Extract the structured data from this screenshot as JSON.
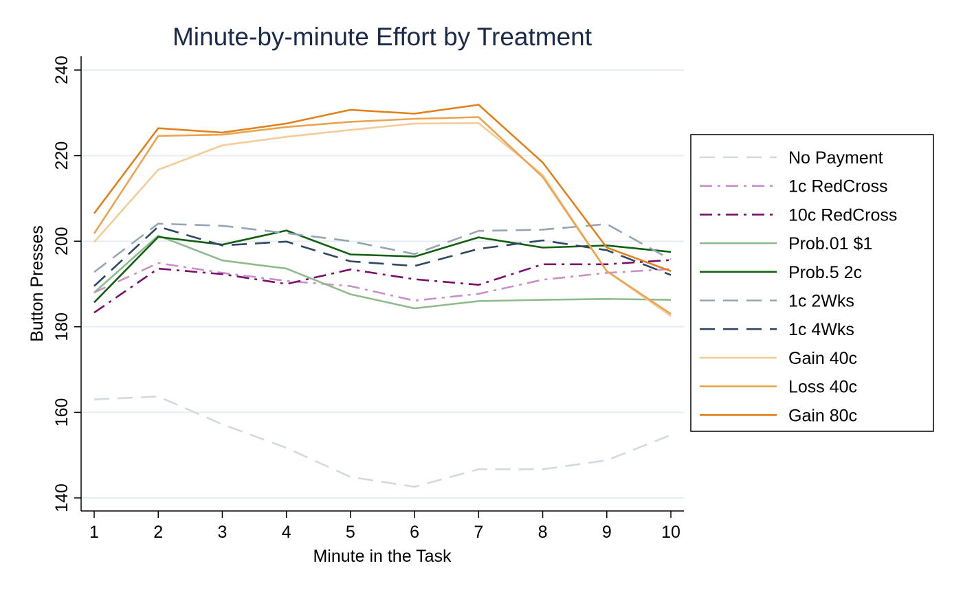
{
  "chart_data": {
    "type": "line",
    "title": "Minute-by-minute Effort by Treatment",
    "xlabel": "Minute in the Task",
    "ylabel": "Button Presses",
    "x": [
      1,
      2,
      3,
      4,
      5,
      6,
      7,
      8,
      9,
      10
    ],
    "xticks": [
      "1",
      "2",
      "3",
      "4",
      "5",
      "6",
      "7",
      "8",
      "9",
      "10"
    ],
    "yticks": [
      "140",
      "160",
      "180",
      "200",
      "220",
      "240"
    ],
    "ylim": [
      137,
      241
    ],
    "grid": true,
    "legend_position": "right",
    "series": [
      {
        "name": "No Payment",
        "color": "#d3d9e2",
        "dash": "long-dash",
        "values": [
          163.0,
          163.7,
          157.2,
          151.7,
          144.9,
          142.6,
          146.7,
          146.7,
          148.8,
          154.7
        ]
      },
      {
        "name": "1c RedCross",
        "color": "#c98fc9",
        "dash": "dash-dot",
        "values": [
          188.0,
          194.9,
          192.6,
          190.7,
          189.5,
          186.1,
          187.7,
          191.0,
          192.6,
          193.5
        ]
      },
      {
        "name": "10c RedCross",
        "color": "#7a0f6e",
        "dash": "dash-dot",
        "values": [
          183.3,
          193.6,
          192.3,
          190.0,
          193.4,
          191.1,
          189.8,
          194.6,
          194.6,
          195.6
        ]
      },
      {
        "name": "Prob.01 $1",
        "color": "#8dbb8d",
        "dash": "solid",
        "values": [
          188.0,
          201.3,
          195.5,
          193.6,
          187.6,
          184.3,
          186.0,
          186.3,
          186.5,
          186.3
        ]
      },
      {
        "name": "Prob.5 2c",
        "color": "#106010",
        "dash": "solid",
        "values": [
          185.7,
          201.0,
          199.2,
          202.5,
          196.9,
          196.4,
          200.9,
          198.5,
          199.0,
          197.5
        ]
      },
      {
        "name": "1c 2Wks",
        "color": "#95a5b5",
        "dash": "long-dash",
        "values": [
          192.8,
          204.1,
          203.6,
          201.9,
          200.0,
          197.0,
          202.4,
          202.7,
          204.0,
          195.7
        ]
      },
      {
        "name": "1c 4Wks",
        "color": "#2d4860",
        "dash": "long-dash",
        "values": [
          189.5,
          203.4,
          199.0,
          199.9,
          195.3,
          194.2,
          198.2,
          200.2,
          197.9,
          192.1
        ]
      },
      {
        "name": "Gain 40c",
        "color": "#f3cc9a",
        "dash": "solid",
        "values": [
          199.8,
          216.7,
          222.4,
          224.4,
          226.0,
          227.5,
          227.6,
          215.5,
          193.0,
          182.5
        ]
      },
      {
        "name": "Loss 40c",
        "color": "#eaa450",
        "dash": "solid",
        "values": [
          201.8,
          224.6,
          224.9,
          226.7,
          227.9,
          228.6,
          229.0,
          215.0,
          193.0,
          183.0
        ]
      },
      {
        "name": "Gain 80c",
        "color": "#e2801c",
        "dash": "solid",
        "values": [
          206.5,
          226.4,
          225.4,
          227.5,
          230.7,
          229.8,
          231.9,
          218.4,
          198.5,
          193.0
        ]
      }
    ]
  }
}
